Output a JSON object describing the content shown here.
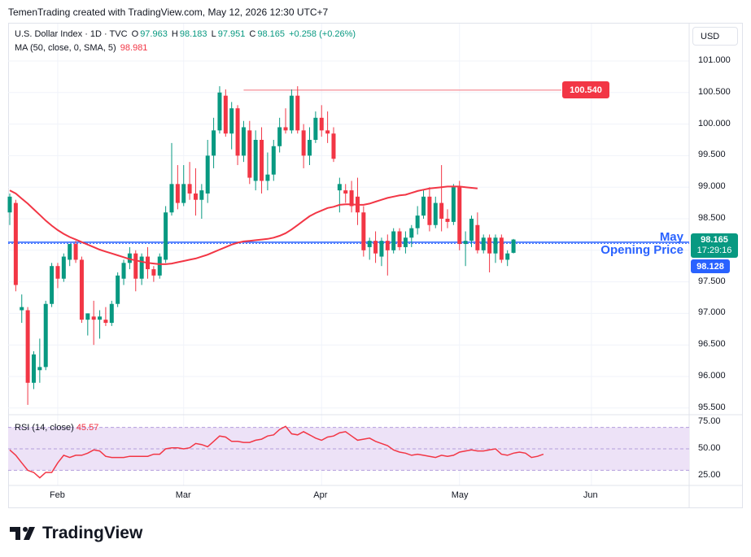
{
  "header": {
    "caption": "TemenTrading created with TradingView.com, May 12, 2026 12:30 UTC+7"
  },
  "legend": {
    "symbol": "U.S. Dollar Index · 1D · TVC",
    "o_label": "O",
    "o_value": "97.963",
    "h_label": "H",
    "h_value": "98.183",
    "l_label": "L",
    "l_value": "97.951",
    "c_label": "C",
    "c_value": "98.165",
    "change": "+0.258 (+0.26%)",
    "ma_label": "MA (50, close, 0, SMA, 5)",
    "ma_value": "98.981"
  },
  "currency_button": "USD",
  "annotation": {
    "line1": "May",
    "line2": "Opening Price"
  },
  "price_tags": {
    "high": "100.540",
    "close": "98.165",
    "countdown": "17:29:16",
    "open_line": "98.128"
  },
  "rsi_legend": {
    "label": "RSI (14, close)",
    "value": "45.57"
  },
  "brand": {
    "name": "TradingView"
  },
  "colors": {
    "up": "#089981",
    "down": "#f23645",
    "ma": "#f23645",
    "open_line": "#2962ff",
    "rsi_band": "#ede2f7",
    "rsi_line": "#f23645"
  },
  "chart_data": [
    {
      "type": "candlestick",
      "title": "U.S. Dollar Index · 1D · TVC",
      "ylim": [
        95.4,
        101.3
      ],
      "y_ticks": [
        "101.000",
        "100.500",
        "100.000",
        "99.500",
        "99.000",
        "98.500",
        "98.000",
        "97.500",
        "97.000",
        "96.500",
        "96.000",
        "95.500"
      ],
      "x_ticks": [
        "Feb",
        "Mar",
        "Apr",
        "May",
        "Jun"
      ],
      "grid": true,
      "candles": [
        {
          "o": 98.6,
          "h": 98.9,
          "l": 98.4,
          "c": 98.85
        },
        {
          "o": 98.75,
          "h": 98.8,
          "l": 97.35,
          "c": 97.45
        },
        {
          "o": 97.05,
          "h": 97.3,
          "l": 96.85,
          "c": 97.1
        },
        {
          "o": 97.05,
          "h": 97.1,
          "l": 95.55,
          "c": 95.9
        },
        {
          "o": 95.9,
          "h": 96.4,
          "l": 95.8,
          "c": 96.35
        },
        {
          "o": 96.1,
          "h": 96.6,
          "l": 95.9,
          "c": 96.15
        },
        {
          "o": 96.15,
          "h": 97.2,
          "l": 96.1,
          "c": 97.15
        },
        {
          "o": 97.15,
          "h": 97.8,
          "l": 97.1,
          "c": 97.75
        },
        {
          "o": 97.75,
          "h": 97.8,
          "l": 97.4,
          "c": 97.55
        },
        {
          "o": 97.55,
          "h": 97.95,
          "l": 97.5,
          "c": 97.9
        },
        {
          "o": 97.85,
          "h": 98.1,
          "l": 97.75,
          "c": 98.1
        },
        {
          "o": 98.1,
          "h": 98.15,
          "l": 97.8,
          "c": 97.85
        },
        {
          "o": 97.85,
          "h": 97.9,
          "l": 96.85,
          "c": 96.9
        },
        {
          "o": 96.9,
          "h": 97.0,
          "l": 96.65,
          "c": 97.0
        },
        {
          "o": 96.95,
          "h": 97.2,
          "l": 96.5,
          "c": 96.9
        },
        {
          "o": 96.9,
          "h": 97.05,
          "l": 96.6,
          "c": 96.95
        },
        {
          "o": 96.9,
          "h": 97.1,
          "l": 96.8,
          "c": 96.85
        },
        {
          "o": 96.85,
          "h": 97.2,
          "l": 96.8,
          "c": 97.15
        },
        {
          "o": 97.15,
          "h": 97.65,
          "l": 97.1,
          "c": 97.6
        },
        {
          "o": 97.55,
          "h": 97.85,
          "l": 97.45,
          "c": 97.8
        },
        {
          "o": 97.8,
          "h": 98.05,
          "l": 97.7,
          "c": 97.95
        },
        {
          "o": 97.95,
          "h": 98.0,
          "l": 97.35,
          "c": 97.55
        },
        {
          "o": 97.55,
          "h": 97.95,
          "l": 97.45,
          "c": 97.9
        },
        {
          "o": 97.9,
          "h": 98.05,
          "l": 97.55,
          "c": 97.7
        },
        {
          "o": 97.7,
          "h": 97.75,
          "l": 97.5,
          "c": 97.6
        },
        {
          "o": 97.6,
          "h": 97.95,
          "l": 97.55,
          "c": 97.9
        },
        {
          "o": 97.85,
          "h": 98.7,
          "l": 97.8,
          "c": 98.6
        },
        {
          "o": 98.6,
          "h": 99.7,
          "l": 98.55,
          "c": 99.05
        },
        {
          "o": 99.05,
          "h": 99.35,
          "l": 98.65,
          "c": 98.75
        },
        {
          "o": 98.75,
          "h": 99.35,
          "l": 98.7,
          "c": 99.05
        },
        {
          "o": 99.05,
          "h": 99.4,
          "l": 98.8,
          "c": 98.9
        },
        {
          "o": 98.9,
          "h": 99.3,
          "l": 98.55,
          "c": 98.8
        },
        {
          "o": 98.8,
          "h": 99.05,
          "l": 98.5,
          "c": 98.95
        },
        {
          "o": 98.9,
          "h": 99.75,
          "l": 98.75,
          "c": 99.5
        },
        {
          "o": 99.5,
          "h": 100.1,
          "l": 99.3,
          "c": 99.9
        },
        {
          "o": 99.9,
          "h": 100.6,
          "l": 99.85,
          "c": 100.5
        },
        {
          "o": 100.45,
          "h": 100.55,
          "l": 99.8,
          "c": 99.85
        },
        {
          "o": 99.85,
          "h": 100.35,
          "l": 99.6,
          "c": 100.25
        },
        {
          "o": 100.25,
          "h": 100.3,
          "l": 99.35,
          "c": 99.5
        },
        {
          "o": 99.5,
          "h": 100.05,
          "l": 99.4,
          "c": 99.95
        },
        {
          "o": 99.9,
          "h": 100.05,
          "l": 99.05,
          "c": 99.15
        },
        {
          "o": 99.1,
          "h": 99.9,
          "l": 98.95,
          "c": 99.75
        },
        {
          "o": 99.75,
          "h": 99.95,
          "l": 98.9,
          "c": 99.1
        },
        {
          "o": 99.1,
          "h": 99.55,
          "l": 98.95,
          "c": 99.2
        },
        {
          "o": 99.2,
          "h": 99.75,
          "l": 99.1,
          "c": 99.65
        },
        {
          "o": 99.65,
          "h": 100.1,
          "l": 99.55,
          "c": 99.95
        },
        {
          "o": 99.95,
          "h": 100.25,
          "l": 99.85,
          "c": 99.9
        },
        {
          "o": 99.9,
          "h": 100.55,
          "l": 99.85,
          "c": 100.45
        },
        {
          "o": 100.45,
          "h": 100.6,
          "l": 99.85,
          "c": 99.9
        },
        {
          "o": 99.9,
          "h": 100.0,
          "l": 99.3,
          "c": 99.5
        },
        {
          "o": 99.5,
          "h": 99.95,
          "l": 99.35,
          "c": 99.75
        },
        {
          "o": 99.75,
          "h": 100.2,
          "l": 99.7,
          "c": 100.1
        },
        {
          "o": 100.1,
          "h": 100.3,
          "l": 99.8,
          "c": 99.9
        },
        {
          "o": 99.9,
          "h": 100.2,
          "l": 99.7,
          "c": 99.85
        },
        {
          "o": 99.85,
          "h": 99.95,
          "l": 99.4,
          "c": 99.45
        },
        {
          "o": 98.95,
          "h": 99.15,
          "l": 98.6,
          "c": 99.05
        },
        {
          "o": 98.95,
          "h": 99.05,
          "l": 98.75,
          "c": 98.9
        },
        {
          "o": 98.95,
          "h": 99.1,
          "l": 98.6,
          "c": 98.7
        },
        {
          "o": 98.85,
          "h": 99.15,
          "l": 98.4,
          "c": 98.6
        },
        {
          "o": 98.6,
          "h": 98.7,
          "l": 97.9,
          "c": 98.0
        },
        {
          "o": 98.05,
          "h": 98.2,
          "l": 97.85,
          "c": 98.15
        },
        {
          "o": 98.15,
          "h": 98.3,
          "l": 97.8,
          "c": 97.95
        },
        {
          "o": 97.9,
          "h": 98.2,
          "l": 97.75,
          "c": 98.15
        },
        {
          "o": 98.15,
          "h": 98.25,
          "l": 97.6,
          "c": 98.0
        },
        {
          "o": 98.0,
          "h": 98.35,
          "l": 97.95,
          "c": 98.3
        },
        {
          "o": 98.3,
          "h": 98.35,
          "l": 98.0,
          "c": 98.05
        },
        {
          "o": 98.05,
          "h": 98.3,
          "l": 97.95,
          "c": 98.2
        },
        {
          "o": 98.2,
          "h": 98.4,
          "l": 98.05,
          "c": 98.35
        },
        {
          "o": 98.35,
          "h": 98.7,
          "l": 98.25,
          "c": 98.55
        },
        {
          "o": 98.55,
          "h": 98.95,
          "l": 98.5,
          "c": 98.85
        },
        {
          "o": 98.85,
          "h": 99.0,
          "l": 98.3,
          "c": 98.4
        },
        {
          "o": 98.4,
          "h": 98.85,
          "l": 98.35,
          "c": 98.75
        },
        {
          "o": 98.75,
          "h": 99.35,
          "l": 98.3,
          "c": 98.5
        },
        {
          "o": 98.5,
          "h": 98.65,
          "l": 98.35,
          "c": 98.45
        },
        {
          "o": 98.45,
          "h": 99.05,
          "l": 98.4,
          "c": 99.0
        },
        {
          "o": 99.0,
          "h": 99.1,
          "l": 98.0,
          "c": 98.1
        },
        {
          "o": 98.1,
          "h": 98.3,
          "l": 97.75,
          "c": 98.15
        },
        {
          "o": 98.15,
          "h": 98.55,
          "l": 98.05,
          "c": 98.5
        },
        {
          "o": 98.4,
          "h": 98.6,
          "l": 97.95,
          "c": 98.0
        },
        {
          "o": 98.0,
          "h": 98.25,
          "l": 97.95,
          "c": 98.2
        },
        {
          "o": 98.2,
          "h": 98.25,
          "l": 97.65,
          "c": 97.95
        },
        {
          "o": 97.95,
          "h": 98.25,
          "l": 97.8,
          "c": 98.2
        },
        {
          "o": 98.2,
          "h": 98.25,
          "l": 97.8,
          "c": 97.85
        },
        {
          "o": 97.85,
          "h": 98.0,
          "l": 97.75,
          "c": 97.95
        },
        {
          "o": 97.96,
          "h": 98.18,
          "l": 97.95,
          "c": 98.17
        }
      ],
      "ma50": [
        98.95,
        98.9,
        98.82,
        98.74,
        98.65,
        98.56,
        98.47,
        98.39,
        98.32,
        98.26,
        98.21,
        98.17,
        98.13,
        98.09,
        98.05,
        98.01,
        97.98,
        97.95,
        97.92,
        97.89,
        97.86,
        97.84,
        97.82,
        97.8,
        97.79,
        97.78,
        97.78,
        97.79,
        97.81,
        97.83,
        97.85,
        97.87,
        97.9,
        97.93,
        97.97,
        98.01,
        98.05,
        98.09,
        98.12,
        98.14,
        98.15,
        98.16,
        98.17,
        98.18,
        98.2,
        98.23,
        98.27,
        98.33,
        98.4,
        98.47,
        98.54,
        98.59,
        98.63,
        98.67,
        98.69,
        98.72,
        98.73,
        98.73,
        98.72,
        98.72,
        98.74,
        98.77,
        98.8,
        98.83,
        98.85,
        98.87,
        98.88,
        98.91,
        98.94,
        98.96,
        98.98,
        98.99,
        99.0,
        99.01,
        99.01,
        99.01,
        99.0,
        98.99,
        98.98
      ],
      "ma50_start_index": 0,
      "horizontal_lines": [
        {
          "y": 100.54,
          "label": "100.540"
        },
        {
          "y": 98.128,
          "label": "98.128"
        }
      ],
      "last_price": 98.165
    },
    {
      "type": "line",
      "title": "RSI (14, close)",
      "ylim": [
        15,
        80
      ],
      "y_ticks": [
        "75.00",
        "50.00",
        "25.00"
      ],
      "band": [
        30,
        70
      ],
      "values": [
        49,
        44,
        37,
        30,
        28,
        23,
        28,
        28,
        37,
        44,
        42,
        44,
        44,
        46,
        49,
        48,
        43,
        42,
        42,
        42,
        43,
        43,
        43,
        43,
        45,
        45,
        50,
        51,
        51,
        50,
        51,
        55,
        54,
        52,
        57,
        62,
        61,
        57,
        57,
        56,
        56,
        58,
        59,
        62,
        63,
        68,
        71,
        64,
        63,
        66,
        63,
        60,
        58,
        61,
        62,
        65,
        66,
        62,
        58,
        59,
        60,
        57,
        55,
        53,
        49,
        47,
        46,
        44,
        45,
        44,
        43,
        42,
        44,
        43,
        44,
        47,
        48,
        49,
        48,
        48,
        49,
        50,
        45,
        44,
        46,
        47,
        46,
        42,
        43,
        45
      ]
    }
  ]
}
